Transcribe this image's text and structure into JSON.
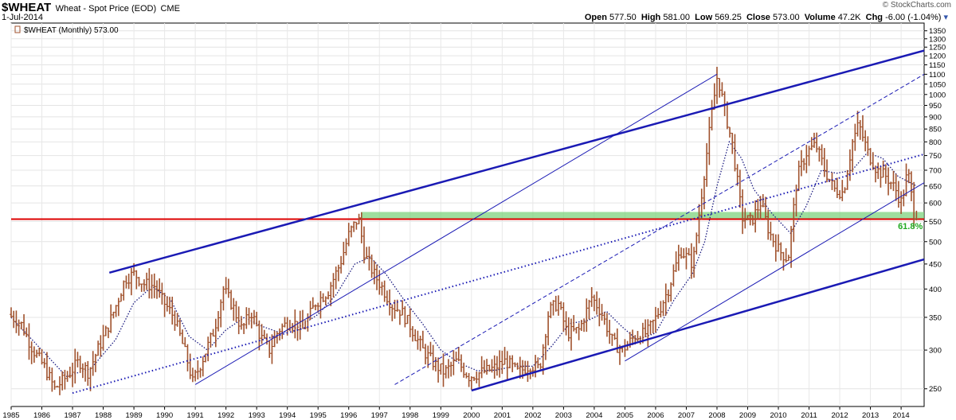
{
  "header": {
    "symbol": "$WHEAT",
    "description": "Wheat - Spot Price (EOD)",
    "exchange": "CME",
    "date": "1-Jul-2014",
    "brand": "© StockCharts.com",
    "open_label": "Open",
    "open": "577.50",
    "high_label": "High",
    "high": "581.00",
    "low_label": "Low",
    "low": "569.25",
    "close_label": "Close",
    "close": "573.00",
    "volume_label": "Volume",
    "volume": "47.2K",
    "chg_label": "Chg",
    "chg": "-6.00 (-1.04%)"
  },
  "legend": {
    "text": "$WHEAT (Monthly) 573.00"
  },
  "colors": {
    "bars": "#a0522d",
    "trendline": "#1a1ab4",
    "horizontal": "#dd0000",
    "zone": "#7ed37e",
    "fib_text": "#22aa22"
  },
  "chart_data": {
    "type": "ohlc",
    "title": "$WHEAT (Monthly) 573.00",
    "y_scale": "log",
    "ylim": [
      230,
      1400
    ],
    "xlim": [
      1985.0,
      2014.75
    ],
    "y_ticks": [
      250,
      300,
      350,
      400,
      450,
      500,
      550,
      600,
      650,
      700,
      750,
      800,
      850,
      900,
      950,
      1000,
      1050,
      1100,
      1150,
      1200,
      1250,
      1300,
      1350
    ],
    "x_ticks": [
      "1985",
      "1986",
      "1987",
      "1988",
      "1989",
      "1990",
      "1991",
      "1992",
      "1993",
      "1994",
      "1995",
      "1996",
      "1997",
      "1998",
      "1999",
      "2000",
      "2001",
      "2002",
      "2003",
      "2004",
      "2005",
      "2006",
      "2007",
      "2008",
      "2009",
      "2010",
      "2011",
      "2012",
      "2013",
      "2014"
    ],
    "price_path": [
      [
        1985.0,
        355
      ],
      [
        1985.4,
        340
      ],
      [
        1985.8,
        300
      ],
      [
        1986.2,
        275
      ],
      [
        1986.5,
        250
      ],
      [
        1986.9,
        265
      ],
      [
        1987.3,
        285
      ],
      [
        1987.6,
        270
      ],
      [
        1987.9,
        300
      ],
      [
        1988.2,
        330
      ],
      [
        1988.5,
        370
      ],
      [
        1988.8,
        420
      ],
      [
        1989.1,
        430
      ],
      [
        1989.4,
        410
      ],
      [
        1989.8,
        405
      ],
      [
        1990.0,
        380
      ],
      [
        1990.4,
        350
      ],
      [
        1990.8,
        290
      ],
      [
        1991.0,
        258
      ],
      [
        1991.3,
        285
      ],
      [
        1991.7,
        330
      ],
      [
        1992.0,
        400
      ],
      [
        1992.3,
        370
      ],
      [
        1992.6,
        330
      ],
      [
        1992.9,
        360
      ],
      [
        1993.2,
        320
      ],
      [
        1993.5,
        300
      ],
      [
        1993.8,
        330
      ],
      [
        1994.2,
        345
      ],
      [
        1994.6,
        330
      ],
      [
        1995.0,
        375
      ],
      [
        1995.4,
        395
      ],
      [
        1995.8,
        450
      ],
      [
        1996.1,
        520
      ],
      [
        1996.4,
        560
      ],
      [
        1996.6,
        470
      ],
      [
        1996.9,
        430
      ],
      [
        1997.2,
        400
      ],
      [
        1997.5,
        370
      ],
      [
        1997.8,
        360
      ],
      [
        1998.1,
        335
      ],
      [
        1998.5,
        300
      ],
      [
        1998.9,
        280
      ],
      [
        1999.2,
        270
      ],
      [
        1999.6,
        285
      ],
      [
        2000.0,
        265
      ],
      [
        2000.4,
        270
      ],
      [
        2000.8,
        275
      ],
      [
        2001.2,
        285
      ],
      [
        2001.6,
        270
      ],
      [
        2002.0,
        280
      ],
      [
        2002.3,
        275
      ],
      [
        2002.6,
        360
      ],
      [
        2002.9,
        375
      ],
      [
        2003.2,
        325
      ],
      [
        2003.6,
        330
      ],
      [
        2004.0,
        385
      ],
      [
        2004.3,
        360
      ],
      [
        2004.7,
        310
      ],
      [
        2005.0,
        300
      ],
      [
        2005.4,
        320
      ],
      [
        2005.8,
        325
      ],
      [
        2006.1,
        350
      ],
      [
        2006.5,
        400
      ],
      [
        2006.9,
        480
      ],
      [
        2007.3,
        450
      ],
      [
        2007.6,
        640
      ],
      [
        2007.9,
        900
      ],
      [
        2008.1,
        1100
      ],
      [
        2008.3,
        950
      ],
      [
        2008.6,
        780
      ],
      [
        2008.9,
        560
      ],
      [
        2009.2,
        550
      ],
      [
        2009.5,
        600
      ],
      [
        2009.8,
        520
      ],
      [
        2010.1,
        480
      ],
      [
        2010.4,
        460
      ],
      [
        2010.7,
        680
      ],
      [
        2011.0,
        760
      ],
      [
        2011.3,
        790
      ],
      [
        2011.6,
        700
      ],
      [
        2011.9,
        640
      ],
      [
        2012.2,
        630
      ],
      [
        2012.5,
        800
      ],
      [
        2012.7,
        870
      ],
      [
        2013.0,
        760
      ],
      [
        2013.3,
        700
      ],
      [
        2013.6,
        680
      ],
      [
        2013.9,
        640
      ],
      [
        2014.1,
        600
      ],
      [
        2014.3,
        700
      ],
      [
        2014.5,
        573
      ]
    ],
    "moving_average": [
      [
        1985.0,
        350
      ],
      [
        1986.0,
        300
      ],
      [
        1986.8,
        265
      ],
      [
        1987.6,
        275
      ],
      [
        1988.4,
        315
      ],
      [
        1989.0,
        375
      ],
      [
        1989.6,
        405
      ],
      [
        1990.2,
        380
      ],
      [
        1990.8,
        320
      ],
      [
        1991.4,
        300
      ],
      [
        1992.0,
        330
      ],
      [
        1992.6,
        350
      ],
      [
        1993.2,
        335
      ],
      [
        1993.8,
        325
      ],
      [
        1994.4,
        335
      ],
      [
        1995.0,
        355
      ],
      [
        1995.6,
        390
      ],
      [
        1996.2,
        450
      ],
      [
        1996.7,
        465
      ],
      [
        1997.2,
        430
      ],
      [
        1997.8,
        380
      ],
      [
        1998.4,
        340
      ],
      [
        1999.0,
        300
      ],
      [
        1999.6,
        282
      ],
      [
        2000.2,
        272
      ],
      [
        2000.8,
        273
      ],
      [
        2001.4,
        278
      ],
      [
        2002.0,
        278
      ],
      [
        2002.6,
        305
      ],
      [
        2003.2,
        340
      ],
      [
        2003.8,
        345
      ],
      [
        2004.4,
        360
      ],
      [
        2004.9,
        335
      ],
      [
        2005.4,
        315
      ],
      [
        2006.0,
        325
      ],
      [
        2006.6,
        380
      ],
      [
        2007.2,
        430
      ],
      [
        2007.6,
        500
      ],
      [
        2008.0,
        650
      ],
      [
        2008.4,
        800
      ],
      [
        2008.8,
        740
      ],
      [
        2009.2,
        640
      ],
      [
        2009.8,
        570
      ],
      [
        2010.4,
        520
      ],
      [
        2010.9,
        590
      ],
      [
        2011.4,
        700
      ],
      [
        2011.9,
        690
      ],
      [
        2012.4,
        700
      ],
      [
        2012.9,
        760
      ],
      [
        2013.4,
        740
      ],
      [
        2013.9,
        680
      ],
      [
        2014.5,
        650
      ]
    ],
    "trendlines": [
      {
        "style": "thick",
        "points": [
          [
            1988.2,
            432
          ],
          [
            2014.75,
            1230
          ]
        ]
      },
      {
        "style": "thick",
        "points": [
          [
            2000.0,
            248
          ],
          [
            2014.75,
            460
          ]
        ]
      },
      {
        "style": "thin",
        "points": [
          [
            1991.0,
            255
          ],
          [
            2008.0,
            1100
          ]
        ]
      },
      {
        "style": "thin",
        "points": [
          [
            2005.0,
            285
          ],
          [
            2014.75,
            660
          ]
        ]
      },
      {
        "style": "dashed",
        "points": [
          [
            1997.5,
            255
          ],
          [
            2014.75,
            1100
          ]
        ]
      },
      {
        "style": "dotted",
        "points": [
          [
            1987.0,
            245
          ],
          [
            2014.75,
            755
          ]
        ]
      }
    ],
    "horizontal_line": {
      "value": 556
    },
    "zone": {
      "from_x": 1996.4,
      "to_x": 2014.75,
      "low": 556,
      "high": 575
    },
    "annotations": [
      {
        "text": "61.8%",
        "x": 2014.3,
        "y": 530
      }
    ]
  }
}
